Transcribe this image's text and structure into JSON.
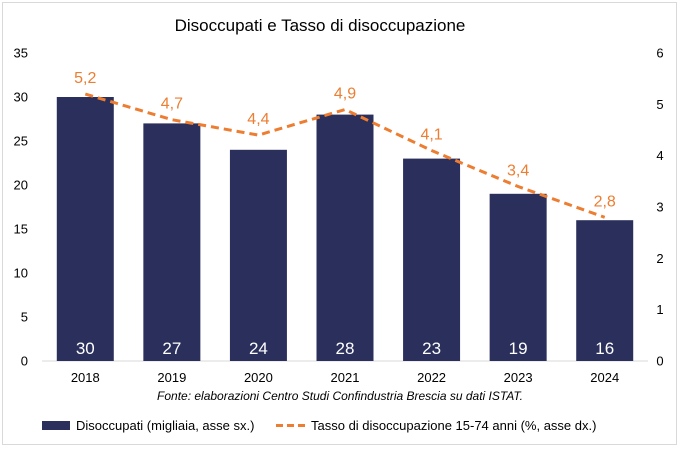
{
  "chart_data": {
    "type": "bar+line",
    "title": "Disoccupati e Tasso di disoccupazione",
    "categories": [
      "2018",
      "2019",
      "2020",
      "2021",
      "2022",
      "2023",
      "2024"
    ],
    "series": [
      {
        "name": "Disoccupati (migliaia, asse sx.)",
        "type": "bar",
        "axis": "left",
        "values": [
          30,
          27,
          24,
          28,
          23,
          19,
          16
        ],
        "labels": [
          "30",
          "27",
          "24",
          "28",
          "23",
          "19",
          "16"
        ],
        "color": "#2A2F5B"
      },
      {
        "name": "Tasso di disoccupazione 15-74 anni (%, asse dx.)",
        "type": "line",
        "axis": "right",
        "style": "dashed",
        "values": [
          5.2,
          4.7,
          4.4,
          4.9,
          4.1,
          3.4,
          2.8
        ],
        "labels": [
          "5,2",
          "4,7",
          "4,4",
          "4,9",
          "4,1",
          "3,4",
          "2,8"
        ],
        "color": "#ED7D31"
      }
    ],
    "y_left": {
      "min": 0,
      "max": 35,
      "ticks": [
        0,
        5,
        10,
        15,
        20,
        25,
        30,
        35
      ]
    },
    "y_right": {
      "min": 0,
      "max": 6,
      "ticks": [
        0,
        1,
        2,
        3,
        4,
        5,
        6
      ]
    },
    "grid": false,
    "legend_position": "bottom",
    "source_note": "Fonte: elaborazioni Centro Studi Confindustria Brescia su dati ISTAT."
  }
}
